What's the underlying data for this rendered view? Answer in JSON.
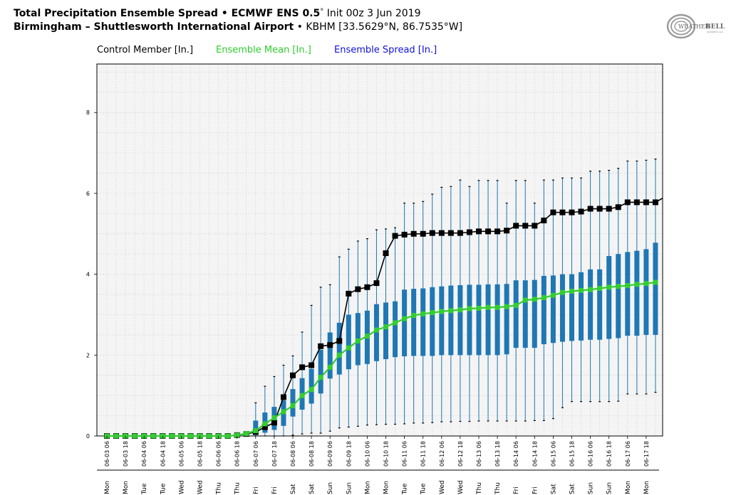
{
  "header": {
    "title_bold": "Total Precipitation Ensemble Spread • ECMWF ENS 0.5",
    "title_deg": "°",
    "title_init": "Init 00z 3 Jun 2019",
    "location_bold": "Birmingham – Shuttlesworth International Airport",
    "location_sep": " • ",
    "location_detail": "KBHM [33.5629°N, 86.7535°W]"
  },
  "legend": {
    "control": "Control Member [In.]",
    "mean": "Ensemble Mean [In.]",
    "spread": "Ensemble Spread [In.]"
  },
  "logo": {
    "text_left": "WEATHER",
    "text_right": "BELL",
    "sub": "Analytics LLC"
  },
  "colors": {
    "control": "#000000",
    "mean": "#33cc33",
    "spread": "#1f77b4",
    "legend_mean_text": "#2ecc2e",
    "legend_spread_text": "#1111dd",
    "plot_bg": "#f4f4f4",
    "grid": "#d8d8d8"
  },
  "chart_data": {
    "type": "box",
    "ylim": [
      0,
      9.2
    ],
    "yticks": [
      0,
      2,
      4,
      6,
      8
    ],
    "grid": true,
    "legend_placement": "top-left",
    "x": [
      "06-03 06",
      "06-03 12",
      "06-03 18",
      "06-04 00",
      "06-04 06",
      "06-04 12",
      "06-04 18",
      "06-05 00",
      "06-05 06",
      "06-05 12",
      "06-05 18",
      "06-06 00",
      "06-06 06",
      "06-06 12",
      "06-06 18",
      "06-07 00",
      "06-07 06",
      "06-07 12",
      "06-07 18",
      "06-08 00",
      "06-08 06",
      "06-08 12",
      "06-08 18",
      "06-09 00",
      "06-09 06",
      "06-09 12",
      "06-09 18",
      "06-10 00",
      "06-10 06",
      "06-10 12",
      "06-10 18",
      "06-11 00",
      "06-11 06",
      "06-11 12",
      "06-11 18",
      "06-12 00",
      "06-12 06",
      "06-12 12",
      "06-12 18",
      "06-13 00",
      "06-13 06",
      "06-13 12",
      "06-13 18",
      "06-14 00",
      "06-14 06",
      "06-14 12",
      "06-14 18",
      "06-15 00",
      "06-15 06",
      "06-15 12",
      "06-15 18",
      "06-16 00",
      "06-16 06",
      "06-16 12",
      "06-16 18",
      "06-17 00",
      "06-17 06",
      "06-17 12",
      "06-17 18",
      "06-18 00"
    ],
    "x_tick_labels": [
      "06-03 06",
      "06-03 18",
      "06-04 06",
      "06-04 18",
      "06-05 06",
      "06-05 18",
      "06-06 06",
      "06-06 18",
      "06-07 06",
      "06-07 18",
      "06-08 06",
      "06-08 18",
      "06-09 06",
      "06-09 18",
      "06-10 06",
      "06-10 18",
      "06-11 06",
      "06-11 18",
      "06-12 06",
      "06-12 18",
      "06-13 06",
      "06-13 18",
      "06-14 06",
      "06-14 18",
      "06-15 06",
      "06-15 18",
      "06-16 06",
      "06-16 18",
      "06-17 06",
      "06-17 18"
    ],
    "day_labels": [
      "Mon",
      "Mon",
      "Tue",
      "Tue",
      "Wed",
      "Wed",
      "Thu",
      "Thu",
      "Fri",
      "Fri",
      "Sat",
      "Sat",
      "Sun",
      "Sun",
      "Mon",
      "Mon",
      "Tue",
      "Tue",
      "Wed",
      "Wed",
      "Thu",
      "Thu",
      "Fri",
      "Fri",
      "Sat",
      "Sat",
      "Sun",
      "Sun",
      "Mon",
      "Mon"
    ],
    "series": [
      {
        "name": "Control Member [In.]",
        "values": [
          0,
          0,
          0,
          0,
          0,
          0,
          0,
          0,
          0,
          0,
          0,
          0,
          0,
          0,
          0.02,
          0.05,
          0.1,
          0.22,
          0.33,
          0.96,
          1.5,
          1.7,
          1.75,
          2.22,
          2.25,
          2.35,
          3.52,
          3.63,
          3.68,
          3.78,
          4.52,
          4.95,
          4.98,
          5.0,
          5.0,
          5.02,
          5.02,
          5.02,
          5.02,
          5.04,
          5.06,
          5.06,
          5.06,
          5.08,
          5.2,
          5.2,
          5.2,
          5.33,
          5.53,
          5.53,
          5.53,
          5.55,
          5.62,
          5.62,
          5.62,
          5.66,
          5.78,
          5.78,
          5.78,
          5.78
        ]
      },
      {
        "name": "Ensemble Mean [In.]",
        "values": [
          0,
          0,
          0,
          0,
          0,
          0,
          0,
          0,
          0,
          0,
          0,
          0,
          0,
          0,
          0.02,
          0.06,
          0.13,
          0.3,
          0.45,
          0.6,
          0.75,
          1.0,
          1.15,
          1.45,
          1.7,
          2.0,
          2.18,
          2.35,
          2.47,
          2.62,
          2.7,
          2.8,
          2.9,
          2.98,
          3.02,
          3.05,
          3.08,
          3.1,
          3.12,
          3.15,
          3.16,
          3.18,
          3.18,
          3.2,
          3.23,
          3.36,
          3.38,
          3.42,
          3.48,
          3.55,
          3.58,
          3.6,
          3.62,
          3.65,
          3.68,
          3.7,
          3.72,
          3.75,
          3.77,
          3.8
        ]
      },
      {
        "name": "Ensemble Spread [In.]",
        "whisker_low": [
          0,
          0,
          0,
          0,
          0,
          0,
          0,
          0,
          0,
          0,
          0,
          0,
          0,
          0,
          0,
          0,
          0,
          0,
          0,
          0,
          0.02,
          0.05,
          0.07,
          0.07,
          0.12,
          0.2,
          0.22,
          0.24,
          0.27,
          0.28,
          0.29,
          0.29,
          0.3,
          0.32,
          0.32,
          0.33,
          0.35,
          0.35,
          0.36,
          0.36,
          0.37,
          0.37,
          0.37,
          0.37,
          0.37,
          0.37,
          0.38,
          0.38,
          0.43,
          0.7,
          0.85,
          0.85,
          0.85,
          0.85,
          0.85,
          0.86,
          1.04,
          1.04,
          1.04,
          1.08
        ],
        "q1": [
          0,
          0,
          0,
          0,
          0,
          0,
          0,
          0,
          0,
          0,
          0,
          0,
          0,
          0,
          0,
          0,
          0.02,
          0.08,
          0.15,
          0.25,
          0.48,
          0.65,
          0.8,
          1.05,
          1.42,
          1.52,
          1.65,
          1.75,
          1.78,
          1.85,
          1.9,
          1.95,
          1.97,
          1.98,
          1.98,
          1.98,
          2.0,
          2.0,
          2.0,
          2.0,
          2.0,
          2.0,
          2.0,
          2.02,
          2.18,
          2.18,
          2.18,
          2.27,
          2.3,
          2.33,
          2.35,
          2.36,
          2.38,
          2.38,
          2.4,
          2.42,
          2.48,
          2.48,
          2.5,
          2.5
        ],
        "q3": [
          0,
          0,
          0,
          0,
          0,
          0,
          0,
          0,
          0,
          0,
          0,
          0,
          0,
          0,
          0,
          0.02,
          0.38,
          0.58,
          0.72,
          0.88,
          1.16,
          1.43,
          1.66,
          2.13,
          2.56,
          2.8,
          3.0,
          3.04,
          3.1,
          3.26,
          3.3,
          3.33,
          3.62,
          3.64,
          3.65,
          3.68,
          3.7,
          3.72,
          3.73,
          3.74,
          3.74,
          3.75,
          3.75,
          3.76,
          3.85,
          3.85,
          3.86,
          3.96,
          3.97,
          4.0,
          4.0,
          4.05,
          4.12,
          4.12,
          4.45,
          4.5,
          4.55,
          4.58,
          4.62,
          4.78
        ],
        "whisker_high": [
          0,
          0,
          0,
          0,
          0,
          0,
          0,
          0,
          0,
          0,
          0,
          0,
          0,
          0,
          0,
          0.05,
          0.82,
          1.23,
          1.47,
          1.75,
          1.98,
          2.57,
          3.23,
          3.68,
          3.74,
          4.43,
          4.62,
          4.82,
          4.88,
          5.1,
          5.12,
          5.15,
          5.76,
          5.76,
          5.8,
          5.98,
          6.15,
          6.17,
          6.33,
          6.17,
          6.32,
          6.32,
          6.32,
          5.76,
          6.32,
          6.32,
          5.76,
          6.33,
          6.33,
          6.38,
          6.38,
          6.38,
          6.55,
          6.55,
          6.57,
          6.62,
          6.8,
          6.8,
          6.82,
          6.85
        ]
      }
    ]
  }
}
